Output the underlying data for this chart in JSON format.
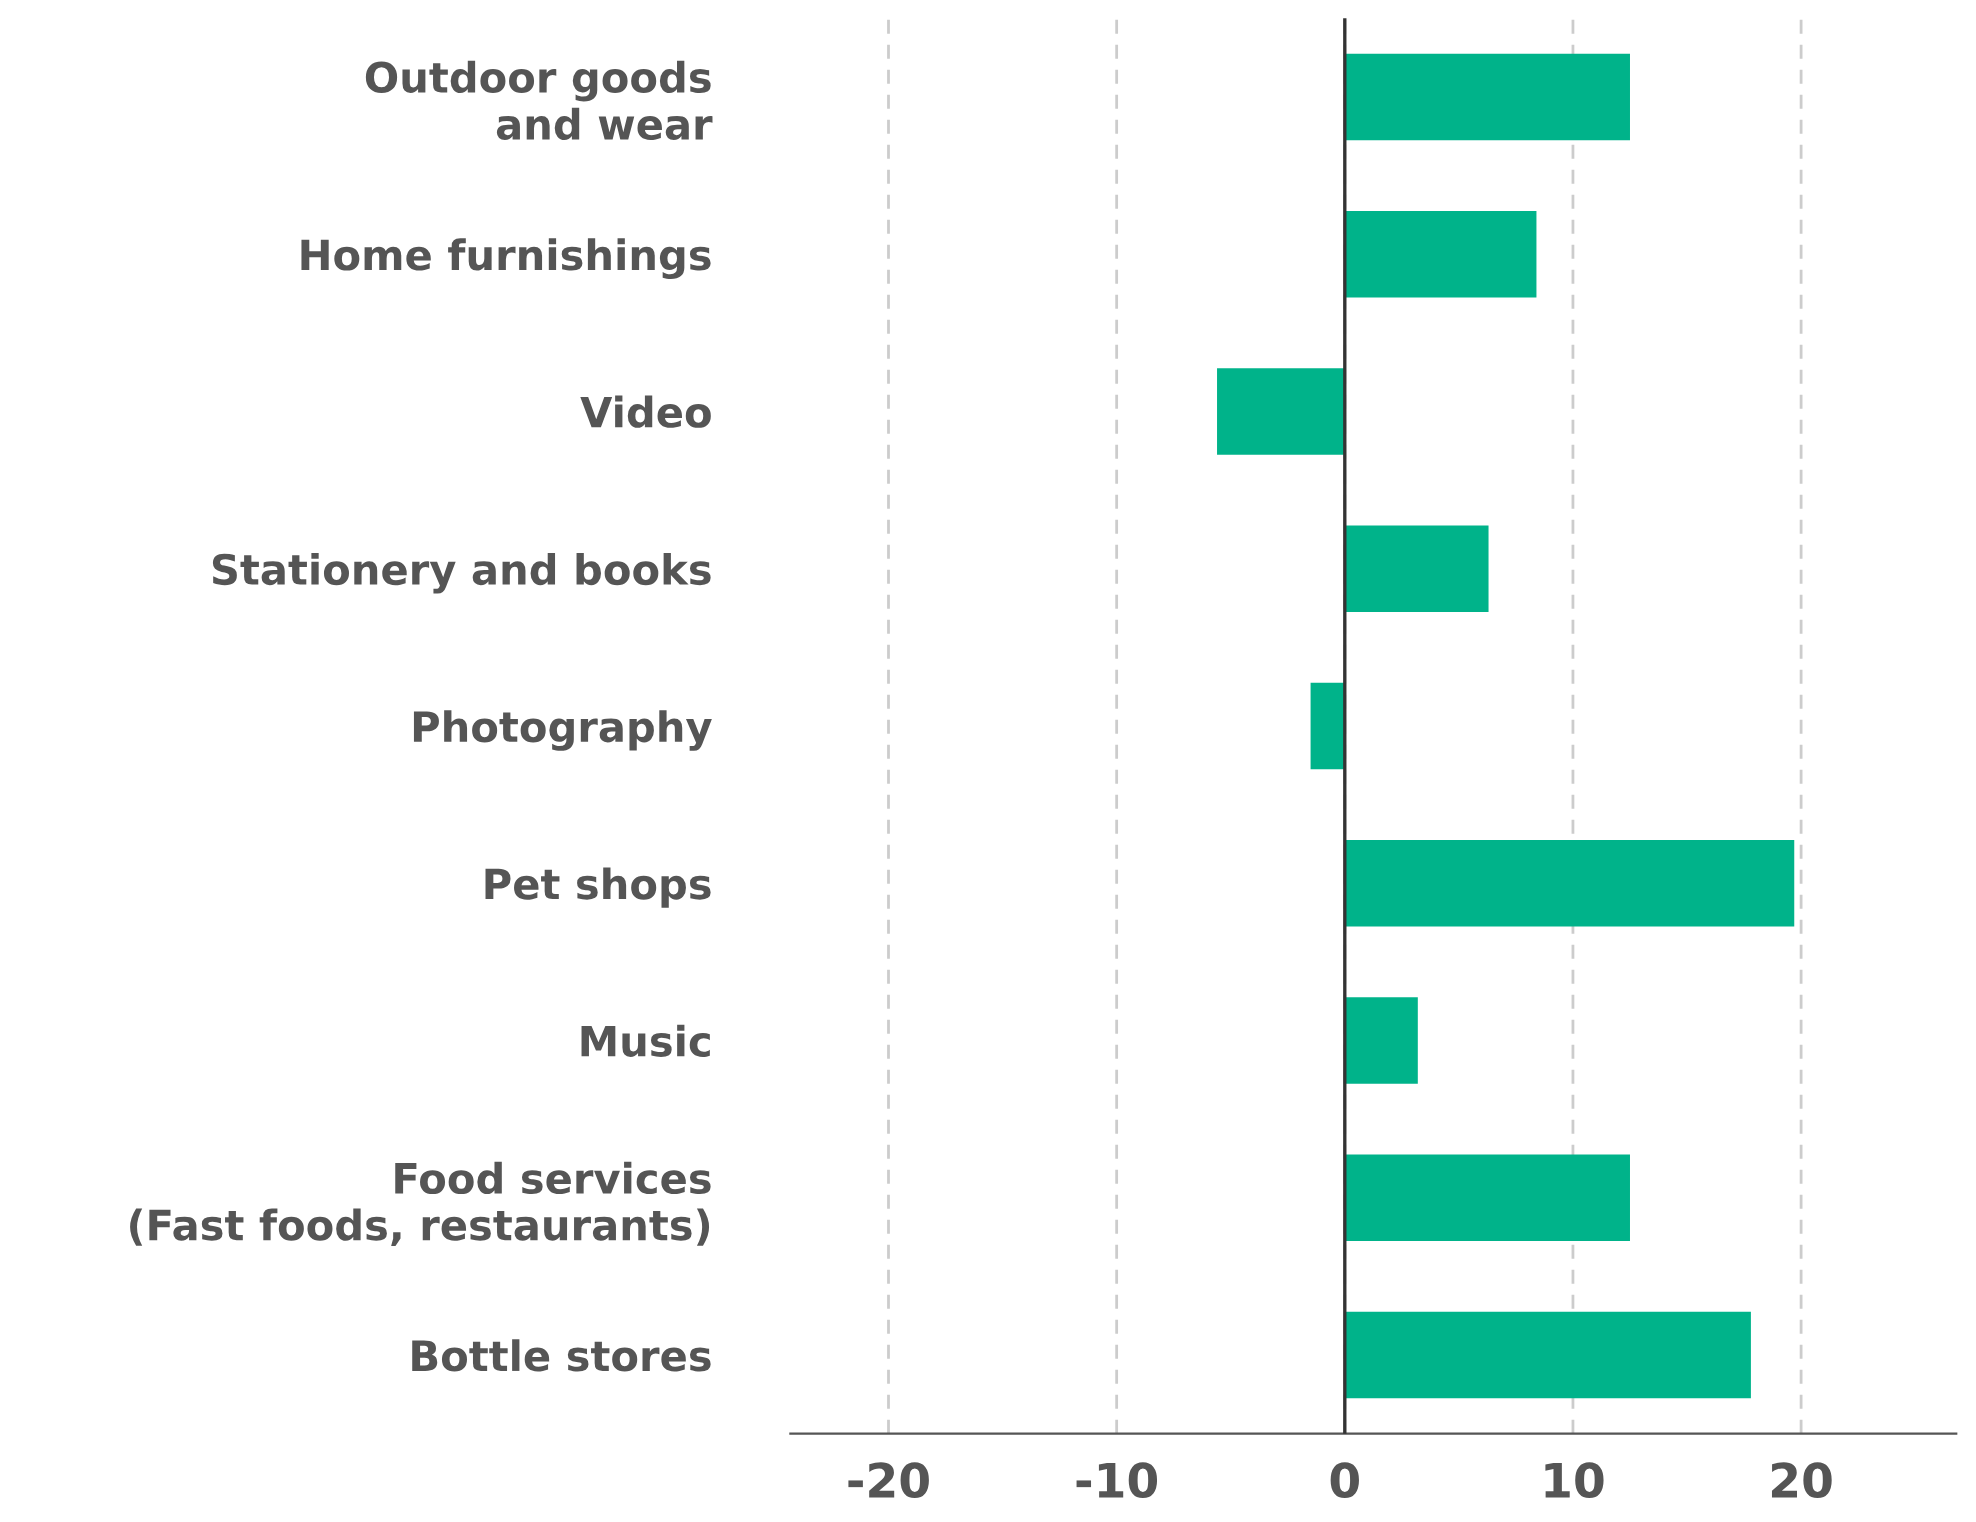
{
  "chart_data": {
    "type": "bar",
    "orientation": "horizontal",
    "categories": [
      "Outdoor goods\nand wear",
      "Home furnishings",
      "Video",
      "Stationery and books",
      "Photography",
      "Pet shops",
      "Music",
      "Food services\n(Fast foods, restaurants)",
      "Bottle stores"
    ],
    "values": [
      12.5,
      8.4,
      -5.6,
      6.3,
      -1.5,
      19.7,
      3.2,
      12.5,
      17.8
    ],
    "color": "#00b38a",
    "xlim": [
      -24.3,
      26.8
    ],
    "xticks": [
      -20,
      -10,
      0,
      10,
      20
    ],
    "grid": "x"
  }
}
